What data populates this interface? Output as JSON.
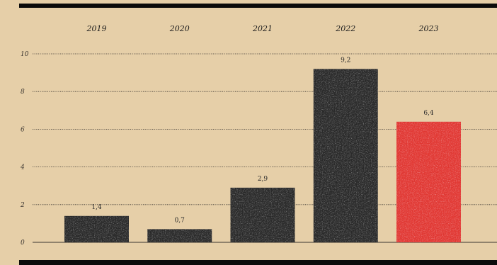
{
  "chart_data": {
    "type": "bar",
    "categories": [
      "2019",
      "2020",
      "2021",
      "2022",
      "2023"
    ],
    "values": [
      1.4,
      0.7,
      2.9,
      9.2,
      6.4
    ],
    "value_labels": [
      "1,4",
      "0,7",
      "2,9",
      "9,2",
      "6,4"
    ],
    "highlight_index": 4,
    "y_ticks": [
      "0",
      "2",
      "4",
      "6",
      "8",
      "10"
    ],
    "y_tick_values": [
      0,
      2,
      4,
      6,
      8,
      10
    ],
    "ylim": [
      0,
      10
    ],
    "grid": true,
    "category_axis_position": "top",
    "title": "",
    "xlabel": "",
    "ylabel": ""
  },
  "colors": {
    "background": "#e6cfa8",
    "bar": "#2b2b2b",
    "highlight": "#e43a35",
    "rule": "#0b0b0b",
    "grid": "#3a3530"
  }
}
